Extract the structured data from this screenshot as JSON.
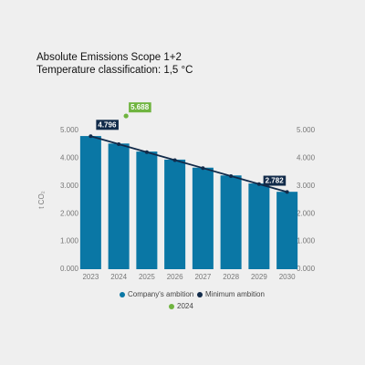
{
  "chart_data": {
    "type": "bar",
    "title": "Absolute Emissions Scope 1+2",
    "subtitle": "Temperature classification: 1,5 °C",
    "y_label": "t CO₂",
    "categories": [
      "2023",
      "2024",
      "2025",
      "2026",
      "2027",
      "2028",
      "2029",
      "2030"
    ],
    "series": [
      {
        "name": "Company's ambition",
        "type": "bar",
        "color": "#0a77a5",
        "values": [
          4800,
          4530,
          4240,
          3950,
          3660,
          3380,
          3090,
          2790
        ]
      },
      {
        "name": "Minimum ambition",
        "type": "line",
        "color": "#122b4a",
        "values": [
          4796,
          4508,
          4220,
          3932,
          3645,
          3357,
          3069,
          2782
        ],
        "value_labels": [
          "4.796",
          null,
          null,
          null,
          null,
          null,
          null,
          "2.782"
        ]
      },
      {
        "name": "2024",
        "type": "scatter",
        "color": "#6fb43f",
        "values": [
          null,
          5688,
          null,
          null,
          null,
          null,
          null,
          null
        ],
        "value_labels": [
          null,
          "5.688",
          null,
          null,
          null,
          null,
          null,
          null
        ]
      }
    ],
    "ylim": [
      0,
      5000
    ],
    "yticks": [
      {
        "value": 0,
        "label": "0.000"
      },
      {
        "value": 1000,
        "label": "1.000"
      },
      {
        "value": 2000,
        "label": "2.000"
      },
      {
        "value": 3000,
        "label": "3.000"
      },
      {
        "value": 4000,
        "label": "4.000"
      },
      {
        "value": 5000,
        "label": "5.000"
      }
    ],
    "y2lim": [
      0,
      5000
    ],
    "y2ticks": [
      {
        "value": 0,
        "label": "0.000"
      },
      {
        "value": 1000,
        "label": "1.000"
      },
      {
        "value": 2000,
        "label": "2.000"
      },
      {
        "value": 3000,
        "label": "3.000"
      },
      {
        "value": 4000,
        "label": "4.000"
      },
      {
        "value": 5000,
        "label": "5.000"
      }
    ],
    "grid": false
  }
}
